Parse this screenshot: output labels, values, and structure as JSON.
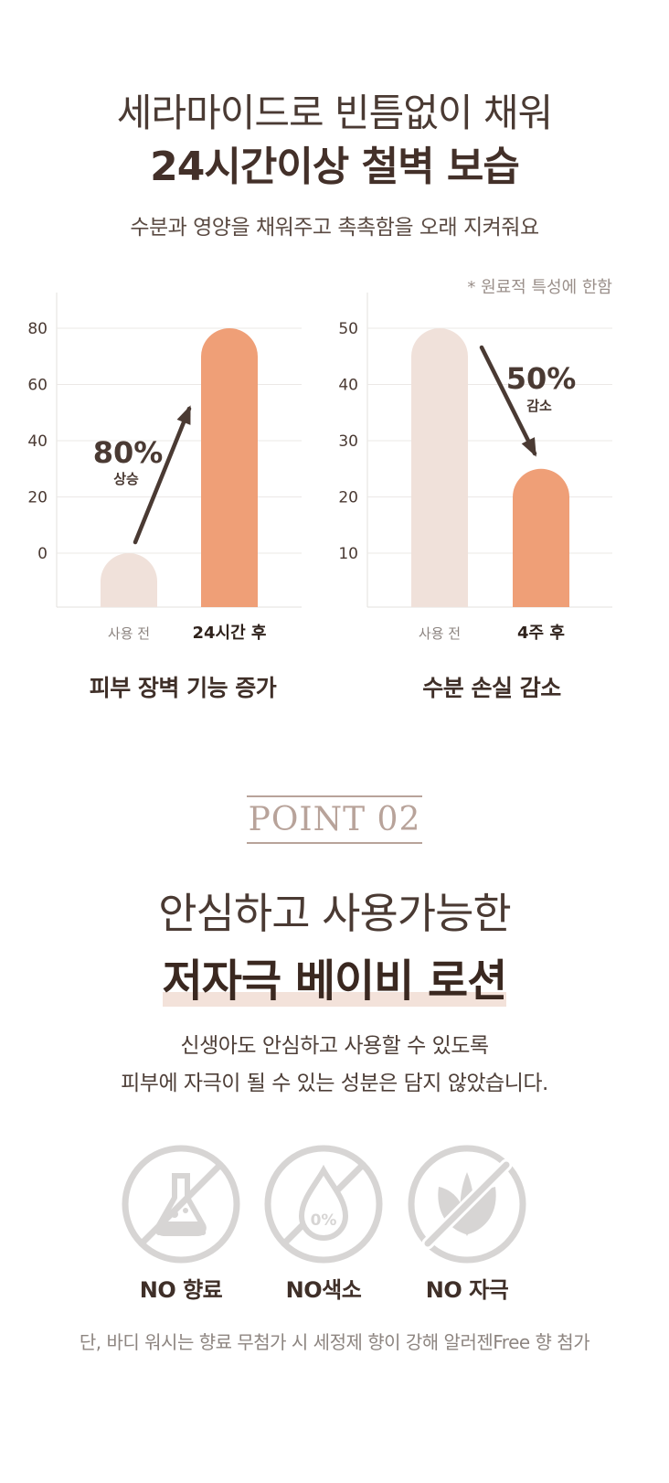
{
  "header": {
    "title_line1": "세라마이드로 빈틈없이 채워",
    "title_line2": "24시간이상 철벽 보습",
    "subtitle": "수분과 영양을 채워주고 촉촉함을 오래 지켜줘요"
  },
  "note": "* 원료적 특성에 한함",
  "chart_data": [
    {
      "type": "bar",
      "title": "피부 장벽 기능 증가",
      "categories": [
        "사용 전",
        "24시간 후"
      ],
      "values": [
        0,
        80
      ],
      "yticks": [
        "80",
        "60",
        "40",
        "20",
        "0"
      ],
      "ylim": [
        -20,
        90
      ],
      "grid": true,
      "annotation": {
        "value": "80%",
        "label": "상승",
        "direction": "up"
      },
      "colors": [
        "#f0e1da",
        "#ef9f77"
      ]
    },
    {
      "type": "bar",
      "title": "수분 손실 감소",
      "categories": [
        "사용 전",
        "4주 후"
      ],
      "values": [
        50,
        25
      ],
      "yticks": [
        "50",
        "40",
        "30",
        "20",
        "10"
      ],
      "ylim": [
        0,
        55
      ],
      "grid": true,
      "annotation": {
        "value": "50%",
        "label": "감소",
        "direction": "down"
      },
      "colors": [
        "#f0e1da",
        "#ef9f77"
      ]
    }
  ],
  "point": {
    "label": "POINT 02",
    "title_line1": "안심하고 사용가능한",
    "title_line2": "저자극 베이비 로션",
    "desc_line1": "신생아도 안심하고 사용할 수 있도록",
    "desc_line2": "피부에 자극이 될 수 있는 성분은 담지 않았습니다."
  },
  "icons": [
    {
      "name": "flask-icon",
      "label": "NO 향료"
    },
    {
      "name": "drop-icon",
      "label": "NO색소",
      "inner": "0%"
    },
    {
      "name": "leaf-icon",
      "label": "NO 자극"
    }
  ],
  "footnote": "단, 바디 워시는 향료 무첨가 시 세정제 향이 강해 알러젠Free 향 첨가",
  "colors": {
    "accent": "#ef9f77",
    "bar_before": "#f0e1da",
    "arrow": "#4a3a33",
    "icon_gray": "#d7d5d4"
  }
}
